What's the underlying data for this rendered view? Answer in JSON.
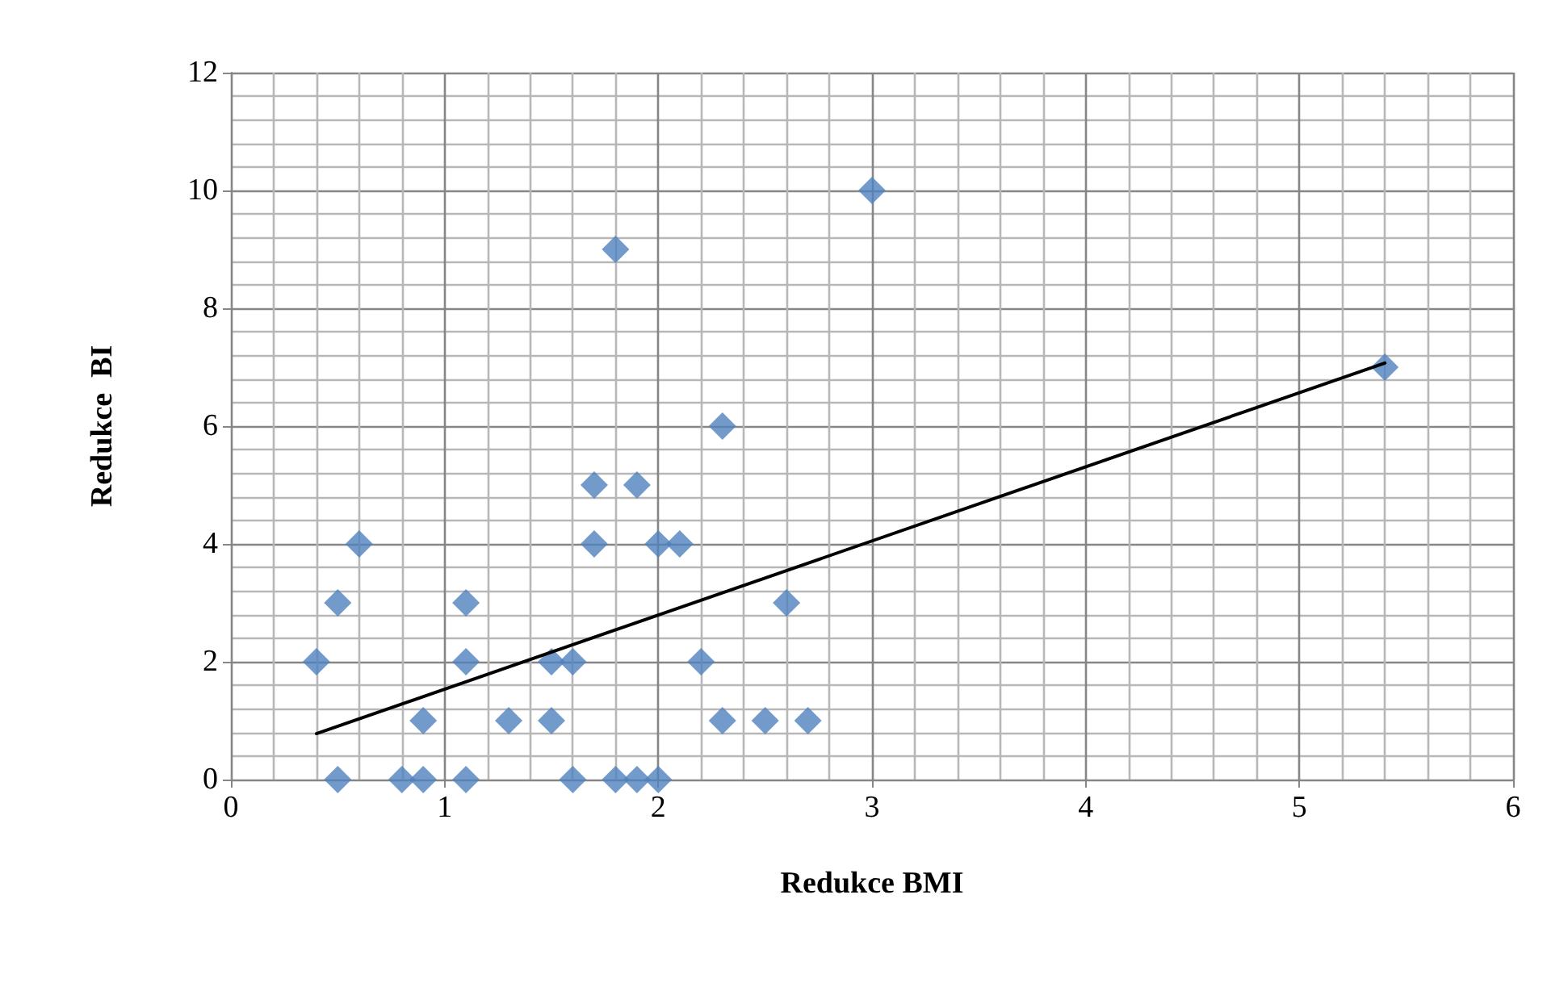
{
  "chart_data": {
    "type": "scatter",
    "xlabel": "Redukce BMI",
    "ylabel": "Redukce  BI",
    "xlim": [
      0,
      6
    ],
    "xticks": [
      0,
      1,
      2,
      3,
      4,
      5,
      6
    ],
    "ylim": [
      0,
      12
    ],
    "yticks": [
      0,
      2,
      4,
      6,
      8,
      10,
      12
    ],
    "grid": true,
    "series": [
      {
        "color": "#4f81bd",
        "marker": "diamond",
        "x": [
          0.4,
          0.5,
          0.5,
          0.6,
          0.8,
          0.9,
          0.9,
          1.1,
          1.1,
          1.1,
          1.3,
          1.5,
          1.5,
          1.6,
          1.6,
          1.7,
          1.7,
          1.8,
          1.8,
          1.9,
          1.9,
          2.0,
          2.0,
          2.1,
          2.2,
          2.3,
          2.3,
          2.5,
          2.6,
          2.7,
          3.0,
          5.4
        ],
        "values": [
          2,
          3,
          0,
          4,
          0,
          1,
          0,
          3,
          2,
          0,
          1,
          2,
          1,
          2,
          0,
          5,
          4,
          9,
          0,
          5,
          0,
          4,
          0,
          4,
          2,
          6,
          1,
          1,
          3,
          1,
          10,
          7
        ]
      },
      {
        "type": "line",
        "color": "#000000",
        "marker": "none",
        "line_style": "solid",
        "x": [
          0.4,
          5.4
        ],
        "values": [
          0.78,
          7.07
        ]
      }
    ]
  }
}
